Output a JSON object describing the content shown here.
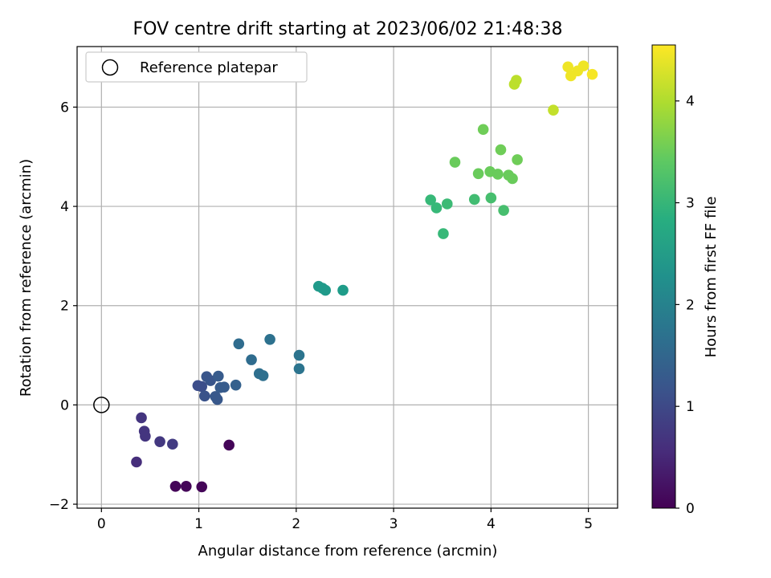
{
  "chart_data": {
    "type": "scatter",
    "title": "FOV centre drift starting at 2023/06/02 21:48:38",
    "xlabel": "Angular distance from reference (arcmin)",
    "ylabel": "Rotation from reference (arcmin)",
    "xlim": [
      -0.25,
      5.3
    ],
    "ylim": [
      -2.08,
      7.22
    ],
    "xticks": [
      "0",
      "1",
      "2",
      "3",
      "4",
      "5"
    ],
    "yticks": [
      "−2",
      "0",
      "2",
      "4",
      "6"
    ],
    "grid": true,
    "legend": {
      "label": "Reference platepar",
      "placement": "top-left"
    },
    "reference_point": {
      "x": 0,
      "y": 0
    },
    "colorbar": {
      "label": "Hours from first FF file",
      "min": 0,
      "max": 4.55,
      "ticks": [
        "0",
        "1",
        "2",
        "3",
        "4"
      ],
      "colormap": "viridis"
    },
    "points": [
      {
        "x": 0.76,
        "y": -1.64,
        "c": 0.05
      },
      {
        "x": 0.87,
        "y": -1.64,
        "c": 0.05
      },
      {
        "x": 1.03,
        "y": -1.65,
        "c": 0.05
      },
      {
        "x": 1.31,
        "y": -0.81,
        "c": 0.05
      },
      {
        "x": 0.36,
        "y": -1.15,
        "c": 0.6
      },
      {
        "x": 0.41,
        "y": -0.26,
        "c": 0.7
      },
      {
        "x": 0.44,
        "y": -0.53,
        "c": 0.7
      },
      {
        "x": 0.45,
        "y": -0.63,
        "c": 0.7
      },
      {
        "x": 0.6,
        "y": -0.74,
        "c": 0.75
      },
      {
        "x": 0.73,
        "y": -0.79,
        "c": 0.8
      },
      {
        "x": 0.99,
        "y": 0.39,
        "c": 1.1
      },
      {
        "x": 1.03,
        "y": 0.37,
        "c": 1.1
      },
      {
        "x": 1.06,
        "y": 0.18,
        "c": 1.15
      },
      {
        "x": 1.08,
        "y": 0.57,
        "c": 1.2
      },
      {
        "x": 1.12,
        "y": 0.49,
        "c": 1.2
      },
      {
        "x": 1.17,
        "y": 0.17,
        "c": 1.25
      },
      {
        "x": 1.19,
        "y": 0.11,
        "c": 1.25
      },
      {
        "x": 1.2,
        "y": 0.58,
        "c": 1.3
      },
      {
        "x": 1.22,
        "y": 0.35,
        "c": 1.3
      },
      {
        "x": 1.26,
        "y": 0.36,
        "c": 1.3
      },
      {
        "x": 1.38,
        "y": 0.4,
        "c": 1.4
      },
      {
        "x": 1.41,
        "y": 1.23,
        "c": 1.6
      },
      {
        "x": 1.54,
        "y": 0.91,
        "c": 1.6
      },
      {
        "x": 1.62,
        "y": 0.63,
        "c": 1.65
      },
      {
        "x": 1.66,
        "y": 0.59,
        "c": 1.65
      },
      {
        "x": 1.73,
        "y": 1.32,
        "c": 1.7
      },
      {
        "x": 2.03,
        "y": 1.0,
        "c": 1.75
      },
      {
        "x": 2.03,
        "y": 0.73,
        "c": 1.75
      },
      {
        "x": 2.23,
        "y": 2.39,
        "c": 2.45
      },
      {
        "x": 2.27,
        "y": 2.35,
        "c": 2.45
      },
      {
        "x": 2.3,
        "y": 2.31,
        "c": 2.45
      },
      {
        "x": 2.48,
        "y": 2.31,
        "c": 2.5
      },
      {
        "x": 3.38,
        "y": 4.13,
        "c": 3.05
      },
      {
        "x": 3.44,
        "y": 3.97,
        "c": 3.05
      },
      {
        "x": 3.51,
        "y": 3.45,
        "c": 3.05
      },
      {
        "x": 3.55,
        "y": 4.05,
        "c": 3.1
      },
      {
        "x": 3.83,
        "y": 4.14,
        "c": 3.15
      },
      {
        "x": 4.0,
        "y": 4.17,
        "c": 3.2
      },
      {
        "x": 4.13,
        "y": 3.92,
        "c": 3.2
      },
      {
        "x": 3.63,
        "y": 4.89,
        "c": 3.5
      },
      {
        "x": 3.87,
        "y": 4.66,
        "c": 3.5
      },
      {
        "x": 3.99,
        "y": 4.7,
        "c": 3.5
      },
      {
        "x": 4.07,
        "y": 4.65,
        "c": 3.5
      },
      {
        "x": 4.18,
        "y": 4.63,
        "c": 3.5
      },
      {
        "x": 4.22,
        "y": 4.56,
        "c": 3.5
      },
      {
        "x": 3.92,
        "y": 5.55,
        "c": 3.55
      },
      {
        "x": 4.1,
        "y": 5.14,
        "c": 3.55
      },
      {
        "x": 4.27,
        "y": 4.94,
        "c": 3.55
      },
      {
        "x": 4.24,
        "y": 6.46,
        "c": 4.1
      },
      {
        "x": 4.26,
        "y": 6.54,
        "c": 4.1
      },
      {
        "x": 4.64,
        "y": 5.94,
        "c": 4.15
      },
      {
        "x": 4.79,
        "y": 6.81,
        "c": 4.45
      },
      {
        "x": 4.82,
        "y": 6.63,
        "c": 4.45
      },
      {
        "x": 4.89,
        "y": 6.73,
        "c": 4.45
      },
      {
        "x": 4.95,
        "y": 6.83,
        "c": 4.45
      },
      {
        "x": 5.04,
        "y": 6.66,
        "c": 4.5
      }
    ]
  }
}
